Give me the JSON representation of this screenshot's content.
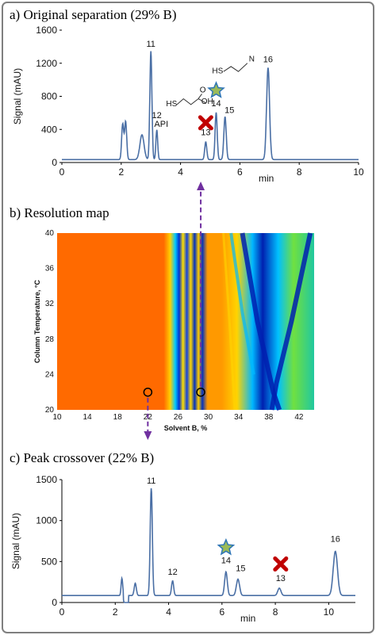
{
  "colors": {
    "trace": "#4a6fa5",
    "frame": "#7f7f7f",
    "arrow": "#7030a0",
    "cross": "#c00000",
    "star_fill": "#9bbb59",
    "star_stroke": "#2e75b6"
  },
  "chart_data": [
    {
      "type": "line",
      "title": "a) Original separation (29% B)",
      "ylabel": "Signal (mAU)",
      "xlabel": "min",
      "xlim": [
        0,
        10
      ],
      "ylim": [
        0,
        1600
      ],
      "x_ticks": [
        0,
        2,
        4,
        6,
        8,
        10
      ],
      "y_ticks": [
        0,
        400,
        800,
        1200,
        1600
      ],
      "baseline": 35,
      "peaks": [
        {
          "rt": 2.05,
          "height": 430,
          "width": 0.035
        },
        {
          "rt": 2.15,
          "height": 460,
          "width": 0.035
        },
        {
          "rt": 2.7,
          "height": 300,
          "width": 0.07
        },
        {
          "rt": 3.0,
          "height": 1310,
          "width": 0.035
        },
        {
          "rt": 3.2,
          "height": 360,
          "width": 0.03
        },
        {
          "rt": 4.85,
          "height": 215,
          "width": 0.035
        },
        {
          "rt": 5.2,
          "height": 570,
          "width": 0.035
        },
        {
          "rt": 5.5,
          "height": 520,
          "width": 0.04
        },
        {
          "rt": 6.95,
          "height": 1110,
          "width": 0.05
        }
      ],
      "labels": [
        {
          "text": "11",
          "x": 3.0,
          "y": 1400
        },
        {
          "text": "12",
          "x": 3.2,
          "y": 535
        },
        {
          "text": "API",
          "x": 3.35,
          "y": 430
        },
        {
          "text": "13",
          "x": 4.85,
          "y": 330
        },
        {
          "text": "14",
          "x": 5.2,
          "y": 680
        },
        {
          "text": "15",
          "x": 5.65,
          "y": 600
        },
        {
          "text": "16",
          "x": 6.95,
          "y": 1210
        }
      ],
      "markers": [
        {
          "type": "cross",
          "x": 4.85,
          "y": 480
        },
        {
          "type": "star",
          "x": 5.2,
          "y": 870
        }
      ],
      "structures": [
        {
          "label": "HS",
          "x": 3.7,
          "y": 680
        },
        {
          "label": "O",
          "x": 4.75,
          "y": 850
        },
        {
          "label": "OH",
          "x": 4.9,
          "y": 710
        },
        {
          "label": "HS",
          "x": 5.25,
          "y": 1080
        },
        {
          "label": "N",
          "x": 6.4,
          "y": 1220
        }
      ]
    },
    {
      "type": "heatmap",
      "title": "b) Resolution map",
      "xlabel": "Solvent B, %",
      "ylabel": "Column Temperature, °C",
      "xlim": [
        10,
        44
      ],
      "ylim": [
        20,
        40
      ],
      "x_ticks": [
        10,
        14,
        18,
        22,
        26,
        30,
        34,
        38,
        42
      ],
      "y_ticks": [
        20,
        24,
        28,
        32,
        36,
        40
      ],
      "points": [
        {
          "name": "22% B",
          "x": 22,
          "y": 22
        },
        {
          "name": "29% B",
          "x": 29,
          "y": 22
        }
      ]
    },
    {
      "type": "line",
      "title": "c) Peak crossover (22% B)",
      "ylabel": "Signal (mAU)",
      "xlabel": "min",
      "xlim": [
        0,
        11
      ],
      "ylim": [
        0,
        1500
      ],
      "x_ticks": [
        0,
        2,
        4,
        6,
        8,
        10
      ],
      "y_ticks": [
        0,
        500,
        1000,
        1500
      ],
      "baseline": 85,
      "peaks": [
        {
          "rt": 2.25,
          "height": 210,
          "width": 0.03
        },
        {
          "rt": 2.75,
          "height": 150,
          "width": 0.04
        },
        {
          "rt": 3.35,
          "height": 1310,
          "width": 0.04
        },
        {
          "rt": 4.15,
          "height": 180,
          "width": 0.04
        },
        {
          "rt": 6.15,
          "height": 290,
          "width": 0.05
        },
        {
          "rt": 6.6,
          "height": 200,
          "width": 0.06
        },
        {
          "rt": 8.15,
          "height": 90,
          "width": 0.06
        },
        {
          "rt": 10.25,
          "height": 540,
          "width": 0.08
        }
      ],
      "labels": [
        {
          "text": "11",
          "x": 3.35,
          "y": 1450
        },
        {
          "text": "12",
          "x": 4.15,
          "y": 340
        },
        {
          "text": "14",
          "x": 6.15,
          "y": 480
        },
        {
          "text": "15",
          "x": 6.7,
          "y": 380
        },
        {
          "text": "13",
          "x": 8.2,
          "y": 260
        },
        {
          "text": "16",
          "x": 10.25,
          "y": 740
        }
      ],
      "markers": [
        {
          "type": "star",
          "x": 6.15,
          "y": 670
        },
        {
          "type": "cross",
          "x": 8.2,
          "y": 470
        }
      ]
    }
  ]
}
